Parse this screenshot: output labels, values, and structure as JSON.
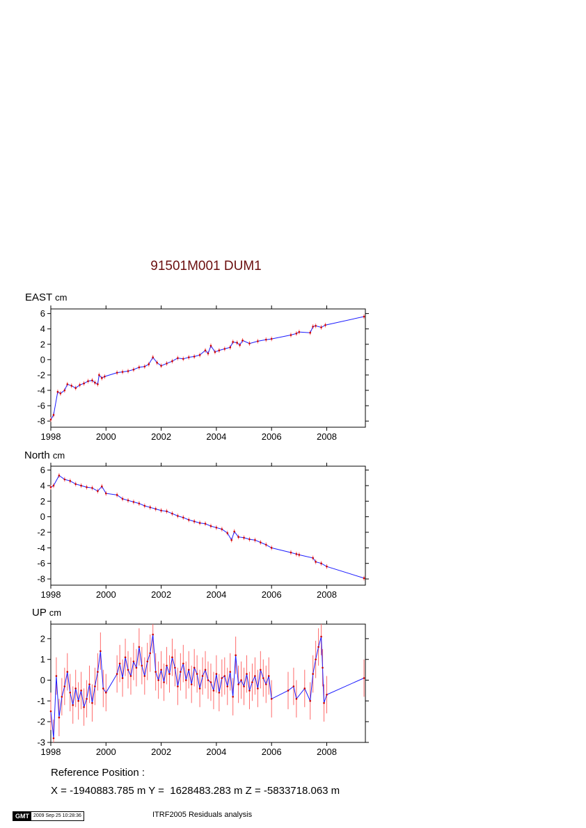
{
  "title": "91501M001 DUM1",
  "colors": {
    "title": "#6b0f0f",
    "line": "#1a1aff",
    "errorbar": "#ff6a6a",
    "point": "#cc0000"
  },
  "chart_data": [
    {
      "type": "line",
      "label": "EAST",
      "unit": "cm",
      "xlim": [
        1998,
        2009.4
      ],
      "ylim": [
        -8.8,
        6.6
      ],
      "xticks": [
        1998,
        2000,
        2002,
        2004,
        2006,
        2008
      ],
      "yticks": [
        6,
        4,
        2,
        0,
        -2,
        -4,
        -6,
        -8
      ],
      "errorbar_half_width": 0.3,
      "series": [
        {
          "x": [
            1998.0,
            1998.1,
            1998.25,
            1998.35,
            1998.5,
            1998.6,
            1998.75,
            1998.9,
            1999.05,
            1999.2,
            1999.35,
            1999.5,
            1999.6,
            1999.7,
            1999.75,
            1999.85,
            1999.95,
            2000.4,
            2000.6,
            2000.8,
            2001.0,
            2001.2,
            2001.4,
            2001.55,
            2001.7,
            2001.85,
            2002.0,
            2002.2,
            2002.4,
            2002.6,
            2002.8,
            2003.0,
            2003.2,
            2003.4,
            2003.6,
            2003.7,
            2003.8,
            2003.95,
            2004.1,
            2004.3,
            2004.5,
            2004.6,
            2004.75,
            2004.85,
            2004.95,
            2005.2,
            2005.5,
            2005.8,
            2006.0,
            2006.7,
            2006.9,
            2007.0,
            2007.4,
            2007.5,
            2007.6,
            2007.8,
            2007.95,
            2009.35
          ],
          "y": [
            -7.8,
            -7.2,
            -4.2,
            -4.4,
            -4.0,
            -3.2,
            -3.4,
            -3.7,
            -3.3,
            -3.1,
            -2.8,
            -2.7,
            -3.0,
            -3.2,
            -2.0,
            -2.4,
            -2.2,
            -1.7,
            -1.6,
            -1.5,
            -1.3,
            -1.0,
            -0.9,
            -0.6,
            0.3,
            -0.4,
            -0.8,
            -0.5,
            -0.2,
            0.2,
            0.1,
            0.3,
            0.4,
            0.6,
            1.2,
            0.8,
            1.8,
            1.0,
            1.2,
            1.4,
            1.6,
            2.3,
            2.2,
            1.9,
            2.5,
            2.1,
            2.4,
            2.6,
            2.7,
            3.2,
            3.4,
            3.6,
            3.5,
            4.3,
            4.4,
            4.2,
            4.5,
            5.6
          ]
        }
      ]
    },
    {
      "type": "line",
      "label": "North",
      "unit": "cm",
      "xlim": [
        1998,
        2009.4
      ],
      "ylim": [
        -8.8,
        6.5
      ],
      "xticks": [
        1998,
        2000,
        2002,
        2004,
        2006,
        2008
      ],
      "yticks": [
        6,
        4,
        2,
        0,
        -2,
        -4,
        -6,
        -8
      ],
      "errorbar_half_width": 0.3,
      "series": [
        {
          "x": [
            1998.0,
            1998.1,
            1998.3,
            1998.5,
            1998.7,
            1998.9,
            1999.1,
            1999.3,
            1999.5,
            1999.7,
            1999.85,
            2000.0,
            2000.4,
            2000.6,
            2000.8,
            2001.0,
            2001.2,
            2001.4,
            2001.6,
            2001.8,
            2002.0,
            2002.2,
            2002.4,
            2002.6,
            2002.8,
            2003.0,
            2003.2,
            2003.4,
            2003.6,
            2003.8,
            2004.0,
            2004.2,
            2004.4,
            2004.55,
            2004.65,
            2004.8,
            2005.0,
            2005.2,
            2005.4,
            2005.6,
            2005.8,
            2006.0,
            2006.7,
            2006.9,
            2007.0,
            2007.5,
            2007.6,
            2007.8,
            2008.0,
            2009.35
          ],
          "y": [
            3.8,
            4.0,
            5.3,
            4.8,
            4.6,
            4.2,
            4.0,
            3.8,
            3.7,
            3.3,
            3.9,
            3.0,
            2.8,
            2.3,
            2.1,
            1.9,
            1.7,
            1.4,
            1.2,
            1.0,
            0.8,
            0.7,
            0.4,
            0.1,
            -0.1,
            -0.4,
            -0.6,
            -0.8,
            -0.9,
            -1.2,
            -1.4,
            -1.6,
            -2.1,
            -3.0,
            -1.9,
            -2.6,
            -2.7,
            -2.9,
            -3.0,
            -3.3,
            -3.6,
            -4.0,
            -4.6,
            -4.8,
            -4.9,
            -5.3,
            -5.8,
            -6.0,
            -6.4,
            -7.9
          ]
        }
      ]
    },
    {
      "type": "line",
      "label": "UP",
      "unit": "cm",
      "xlim": [
        1998,
        2009.4
      ],
      "ylim": [
        -3.0,
        2.7
      ],
      "xticks": [
        1998,
        2000,
        2002,
        2004,
        2006,
        2008
      ],
      "yticks": [
        2,
        1,
        0,
        -1,
        -2,
        -3
      ],
      "errorbar_half_width": 0.9,
      "series": [
        {
          "x": [
            1998.0,
            1998.1,
            1998.2,
            1998.3,
            1998.4,
            1998.5,
            1998.6,
            1998.7,
            1998.8,
            1998.9,
            1999.0,
            1999.1,
            1999.2,
            1999.3,
            1999.4,
            1999.5,
            1999.6,
            1999.7,
            1999.8,
            1999.9,
            2000.0,
            2000.4,
            2000.5,
            2000.6,
            2000.7,
            2000.8,
            2000.9,
            2001.0,
            2001.1,
            2001.2,
            2001.3,
            2001.4,
            2001.5,
            2001.6,
            2001.7,
            2001.8,
            2001.9,
            2002.0,
            2002.1,
            2002.2,
            2002.3,
            2002.4,
            2002.5,
            2002.6,
            2002.7,
            2002.8,
            2002.9,
            2003.0,
            2003.1,
            2003.2,
            2003.3,
            2003.4,
            2003.5,
            2003.6,
            2003.7,
            2003.8,
            2003.9,
            2004.0,
            2004.1,
            2004.2,
            2004.3,
            2004.4,
            2004.5,
            2004.6,
            2004.7,
            2004.8,
            2004.9,
            2005.0,
            2005.1,
            2005.2,
            2005.3,
            2005.4,
            2005.5,
            2005.6,
            2005.7,
            2005.8,
            2005.9,
            2006.0,
            2006.6,
            2006.8,
            2006.9,
            2007.2,
            2007.4,
            2007.5,
            2007.6,
            2007.7,
            2007.8,
            2007.85,
            2007.9,
            2008.0,
            2009.35
          ],
          "y": [
            -1.5,
            -2.8,
            0.2,
            -1.8,
            -0.8,
            -0.3,
            0.4,
            -0.6,
            -1.2,
            -0.4,
            -1.0,
            -0.5,
            -1.3,
            -0.9,
            -0.2,
            -1.1,
            -0.3,
            0.4,
            1.4,
            -0.4,
            -0.6,
            0.3,
            0.8,
            0.1,
            1.1,
            0.5,
            0.2,
            0.9,
            0.6,
            1.6,
            0.7,
            0.2,
            0.9,
            1.3,
            2.2,
            0.4,
            0.0,
            0.5,
            -0.1,
            0.7,
            0.3,
            1.1,
            0.6,
            -0.3,
            0.4,
            0.8,
            0.0,
            0.5,
            -0.2,
            0.6,
            0.3,
            -0.4,
            0.2,
            0.5,
            0.0,
            -0.1,
            -0.5,
            0.3,
            -0.6,
            0.1,
            0.2,
            -0.3,
            0.4,
            -0.8,
            1.2,
            -0.2,
            0.0,
            -0.3,
            0.3,
            -0.5,
            -0.1,
            0.2,
            -0.4,
            0.5,
            0.1,
            -0.2,
            0.2,
            -0.9,
            -0.5,
            -0.3,
            -0.9,
            -0.4,
            -1.0,
            0.3,
            1.0,
            1.6,
            2.1,
            0.6,
            -1.1,
            -0.7,
            0.1
          ]
        }
      ]
    }
  ],
  "reference": {
    "heading": "Reference Position :",
    "coords": "X = -1940883.785 m Y =  1628483.283 m Z = -5833718.063 m"
  },
  "footer": {
    "gmt_logo": "GMT",
    "gmt_timestamp": "2009 Sep 25 10:28:36",
    "note": "ITRF2005 Residuals analysis"
  }
}
